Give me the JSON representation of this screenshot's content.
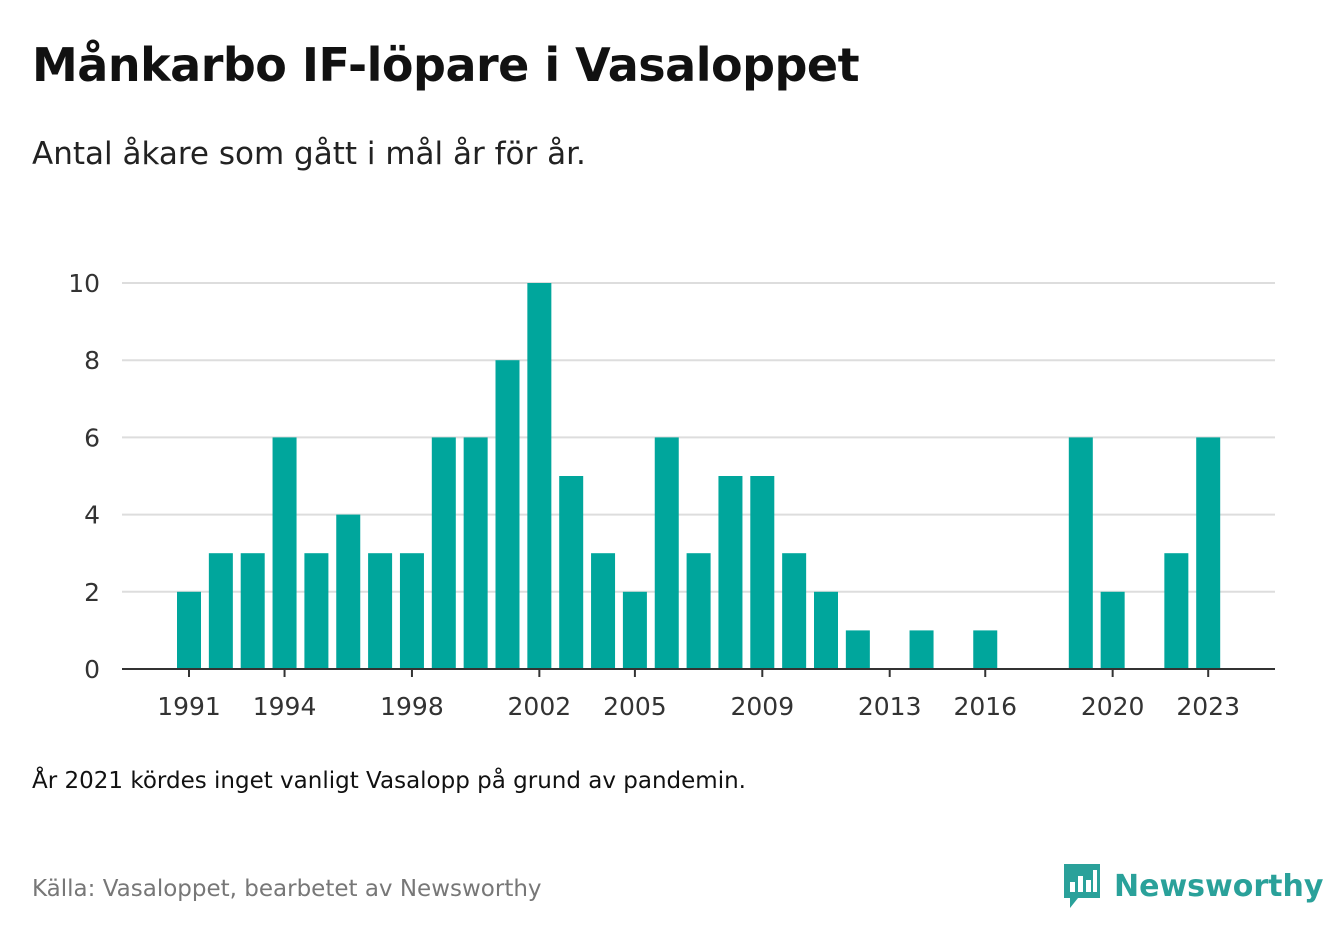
{
  "header": {
    "title": "Månkarbo IF-löpare i Vasaloppet",
    "subtitle": "Antal åkare som gått i mål år för år."
  },
  "footer": {
    "note": "År 2021 kördes inget vanligt Vasalopp på grund av pandemin.",
    "source": "Källa: Vasaloppet, bearbetet av Newsworthy",
    "brand": "Newsworthy"
  },
  "colors": {
    "bar": "#00a69c",
    "brand": "#2aa19a",
    "grid": "#dddddd",
    "axis": "#333333"
  },
  "chart_data": {
    "type": "bar",
    "categories": [
      1991,
      1992,
      1993,
      1994,
      1995,
      1996,
      1997,
      1998,
      1999,
      2000,
      2001,
      2002,
      2003,
      2004,
      2005,
      2006,
      2007,
      2008,
      2009,
      2010,
      2011,
      2012,
      2013,
      2014,
      2015,
      2016,
      2017,
      2018,
      2019,
      2020,
      2021,
      2022,
      2023
    ],
    "values": [
      2,
      3,
      3,
      6,
      3,
      4,
      3,
      3,
      6,
      6,
      8,
      10,
      5,
      3,
      2,
      6,
      3,
      5,
      5,
      3,
      2,
      1,
      0,
      1,
      0,
      1,
      0,
      0,
      6,
      2,
      0,
      3,
      6
    ],
    "x_tick_labels": [
      1991,
      1994,
      1998,
      2002,
      2005,
      2009,
      2013,
      2016,
      2020,
      2023
    ],
    "y_ticks": [
      0,
      2,
      4,
      6,
      8,
      10
    ],
    "ylim": [
      0,
      10
    ],
    "grid": true,
    "xlabel": "",
    "ylabel": ""
  }
}
